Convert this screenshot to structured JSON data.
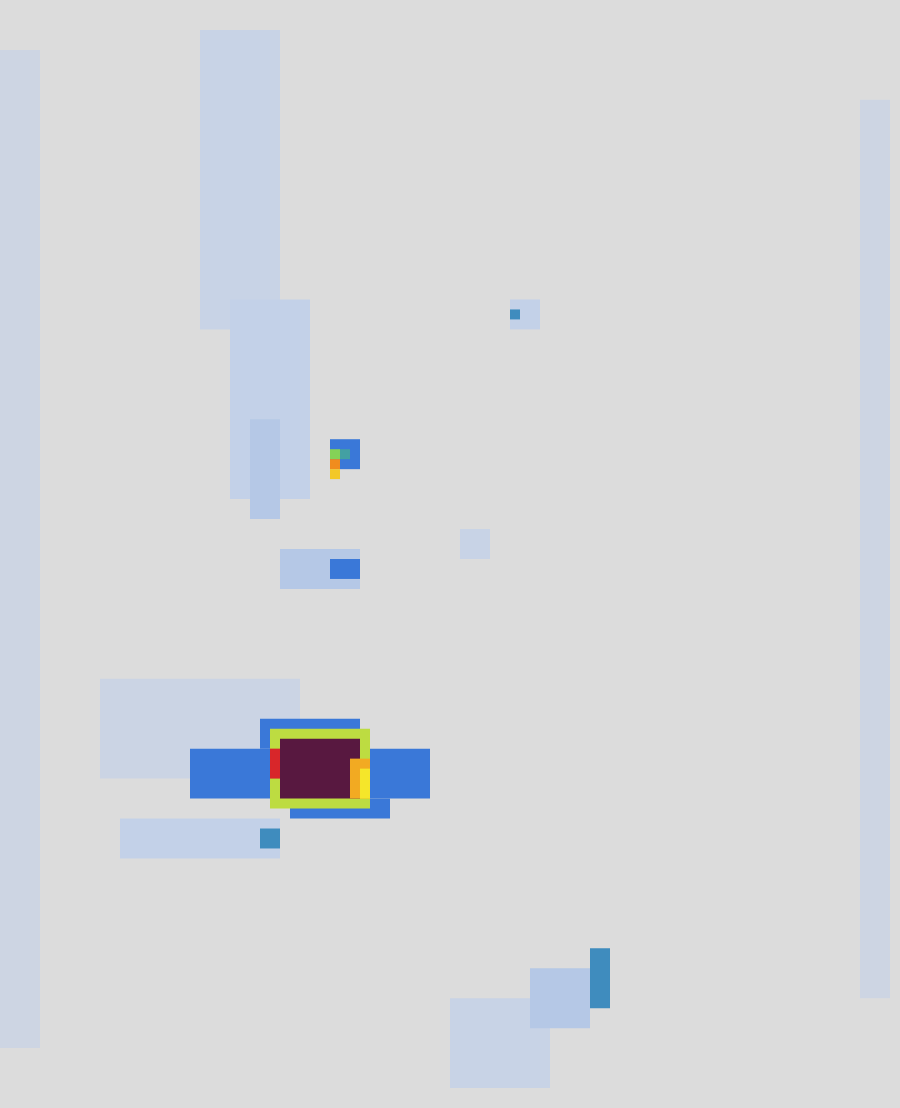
{
  "chart_data": {
    "type": "heatmap",
    "xlim": [
      0,
      90
    ],
    "ylim": [
      0,
      111
    ],
    "zlim": [
      0,
      1
    ],
    "tick_labels": false,
    "grid": false,
    "cells": [
      [
        0,
        0,
        90,
        111,
        0
      ],
      [
        0,
        5,
        4,
        100,
        0.06
      ],
      [
        86,
        10,
        3,
        90,
        0.06
      ],
      [
        20,
        3,
        8,
        30,
        0.08
      ],
      [
        23,
        30,
        8,
        20,
        0.1
      ],
      [
        25,
        42,
        3,
        10,
        0.12
      ],
      [
        28,
        55,
        8,
        4,
        0.12
      ],
      [
        33,
        56,
        3,
        2,
        0.3
      ],
      [
        46,
        53,
        3,
        3,
        0.08
      ],
      [
        10,
        68,
        20,
        10,
        0.07
      ],
      [
        12,
        82,
        16,
        4,
        0.1
      ],
      [
        26,
        83,
        2,
        2,
        0.35
      ],
      [
        45,
        100,
        10,
        9,
        0.08
      ],
      [
        53,
        97,
        6,
        6,
        0.12
      ],
      [
        59,
        95,
        2,
        6,
        0.35
      ],
      [
        51,
        30,
        3,
        3,
        0.1
      ],
      [
        51,
        31,
        1,
        1,
        0.35
      ],
      [
        33,
        44,
        3,
        3,
        0.3
      ],
      [
        33,
        45,
        1,
        1,
        0.55
      ],
      [
        33,
        46,
        1,
        1,
        0.8
      ],
      [
        33,
        47,
        1,
        1,
        0.7
      ],
      [
        34,
        45,
        1,
        1,
        0.4
      ],
      [
        19,
        75,
        24,
        5,
        0.3
      ],
      [
        26,
        72,
        10,
        3,
        0.3
      ],
      [
        29,
        80,
        10,
        2,
        0.3
      ],
      [
        27,
        73,
        10,
        8,
        0.6
      ],
      [
        28,
        74,
        8,
        6,
        1
      ],
      [
        27,
        75,
        1,
        3,
        0.9
      ],
      [
        35,
        76,
        2,
        4,
        0.75
      ],
      [
        36,
        77,
        1,
        3,
        0.65
      ]
    ]
  }
}
